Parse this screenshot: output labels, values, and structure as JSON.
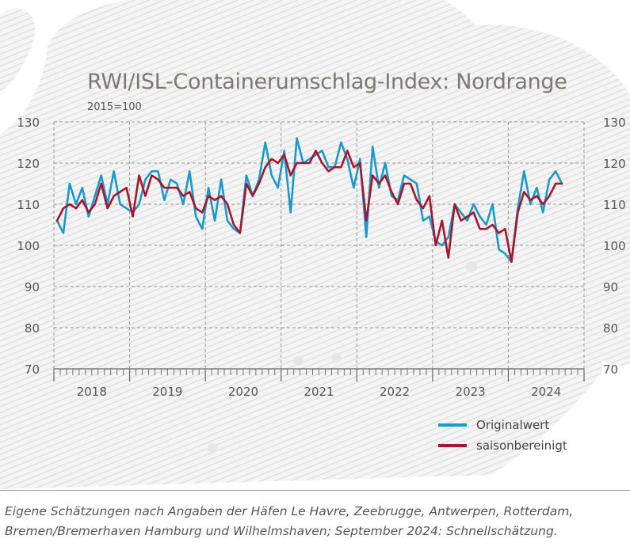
{
  "chart_data": {
    "type": "line",
    "title": "RWI/ISL-Containerumschlag-Index: Nordrange",
    "subtitle": "2015=100",
    "ylim": [
      70,
      130
    ],
    "yticks": [
      70,
      80,
      90,
      100,
      110,
      120,
      130
    ],
    "ytick_labels": [
      "70",
      "80",
      "90",
      "100",
      "110",
      "120",
      "130"
    ],
    "x_start": "2018-01",
    "year_labels": [
      "2018",
      "2019",
      "2020",
      "2021",
      "2022",
      "2023",
      "2024"
    ],
    "grid": true,
    "legend_position": "bottom-right",
    "series": [
      {
        "name": "Originalwert",
        "color": "#1a9ac9",
        "values": [
          106,
          103,
          115,
          110,
          114,
          107,
          112,
          117,
          110,
          118,
          110,
          109,
          108,
          110,
          116,
          118,
          118,
          111,
          116,
          115,
          110,
          118,
          107,
          104,
          114,
          106,
          116,
          106,
          104,
          103,
          117,
          112,
          116,
          125,
          117,
          114,
          123,
          108,
          126,
          120,
          121,
          122,
          123,
          119,
          119,
          125,
          121,
          114,
          121,
          102,
          124,
          114,
          120,
          112,
          111,
          117,
          116,
          115,
          106,
          107,
          101,
          100,
          102,
          110,
          108,
          106,
          110,
          107,
          105,
          110,
          99,
          98,
          96,
          109,
          118,
          110,
          114,
          108,
          116,
          118,
          115
        ]
      },
      {
        "name": "saisonbereinigt",
        "color": "#a6152e",
        "values": [
          106,
          109,
          110,
          109,
          111,
          108,
          110,
          115,
          109,
          112,
          113,
          114,
          107,
          117,
          112,
          117,
          116,
          114,
          114,
          114,
          112,
          113,
          109,
          108,
          112,
          111,
          112,
          110,
          105,
          103,
          115,
          112,
          115,
          119,
          121,
          120,
          122,
          117,
          120,
          120,
          120,
          123,
          120,
          118,
          119,
          119,
          123,
          119,
          120,
          106,
          117,
          115,
          117,
          113,
          110,
          115,
          115,
          111,
          109,
          112,
          100,
          106,
          97,
          110,
          106,
          107,
          108,
          104,
          104,
          105,
          103,
          104,
          96,
          108,
          113,
          111,
          112,
          110,
          112,
          115,
          115
        ]
      }
    ]
  },
  "caption": {
    "line1": "Eigene Schätzungen nach Angaben der Häfen Le Havre, Zeebrugge, Antwerpen, Rotterdam,",
    "line2": "Bremen/Bremerhaven Hamburg und Wilhelmshaven; September 2024: Schnellschätzung."
  }
}
